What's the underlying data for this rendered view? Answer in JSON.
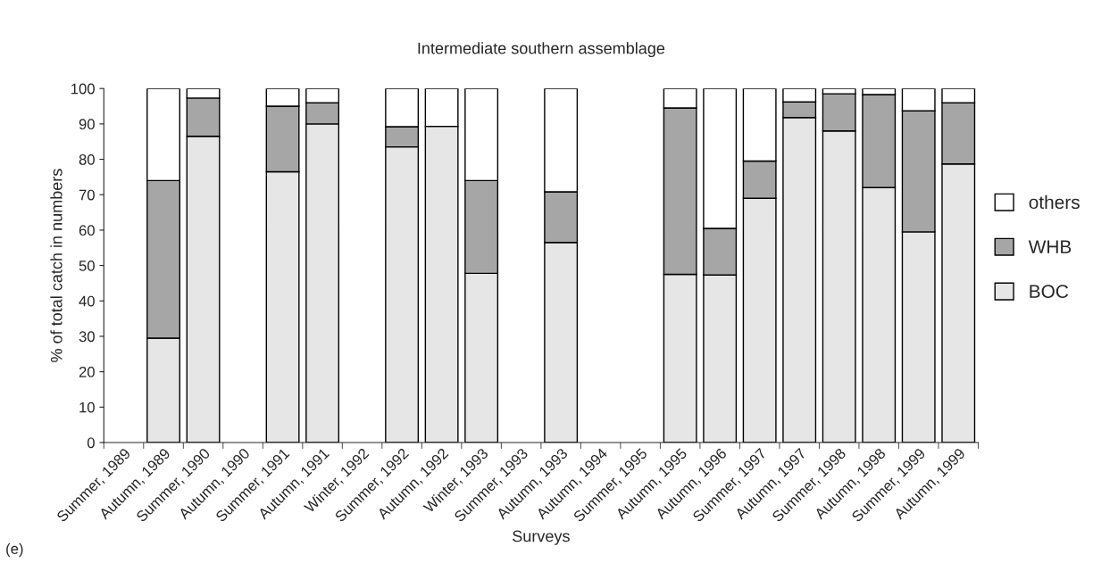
{
  "chart_data": {
    "type": "bar",
    "title": "Intermediate southern assemblage",
    "xlabel": "Surveys",
    "ylabel": "% of total catch in numbers",
    "annotations": [
      "(e)"
    ],
    "categories": [
      "Summer, 1989",
      "Autumn, 1989",
      "Summer, 1990",
      "Autumn, 1990",
      "Summer, 1991",
      "Autumn, 1991",
      "Winter, 1992",
      "Summer, 1992",
      "Autumn, 1992",
      "Winter, 1993",
      "Summer, 1993",
      "Autumn, 1993",
      "Autumn, 1994",
      "Summer, 1995",
      "Autumn, 1995",
      "Autumn, 1996",
      "Summer, 1997",
      "Autumn, 1997",
      "Summer, 1998",
      "Autumn, 1998",
      "Summer, 1999",
      "Autumn, 1999"
    ],
    "stacked": true,
    "series": [
      {
        "name": "BOC",
        "color": "#e6e6e6",
        "values": [
          null,
          29.5,
          86.5,
          null,
          76.5,
          90,
          null,
          83.5,
          89.3,
          47.8,
          null,
          56.5,
          null,
          null,
          47.5,
          47.3,
          69,
          91.8,
          88,
          72,
          59.5,
          78.7
        ]
      },
      {
        "name": "WHB",
        "color": "#a6a6a6",
        "values": [
          null,
          44.5,
          10.8,
          null,
          18.5,
          6,
          null,
          5.7,
          null,
          26.2,
          null,
          14.3,
          null,
          null,
          47,
          13.2,
          10.5,
          4.4,
          10.5,
          26.3,
          34.2,
          17.3
        ]
      },
      {
        "name": "others",
        "color": "#ffffff",
        "values": [
          null,
          26,
          2.7,
          null,
          5,
          4,
          null,
          10.8,
          10.7,
          26,
          null,
          29.2,
          null,
          null,
          5.5,
          39.5,
          20.5,
          3.8,
          1.5,
          1.7,
          6.3,
          4
        ]
      }
    ],
    "ylim": [
      0,
      100
    ],
    "yticks": [
      0,
      10,
      20,
      30,
      40,
      50,
      60,
      70,
      80,
      90,
      100
    ],
    "legend": "right",
    "grid": false
  }
}
